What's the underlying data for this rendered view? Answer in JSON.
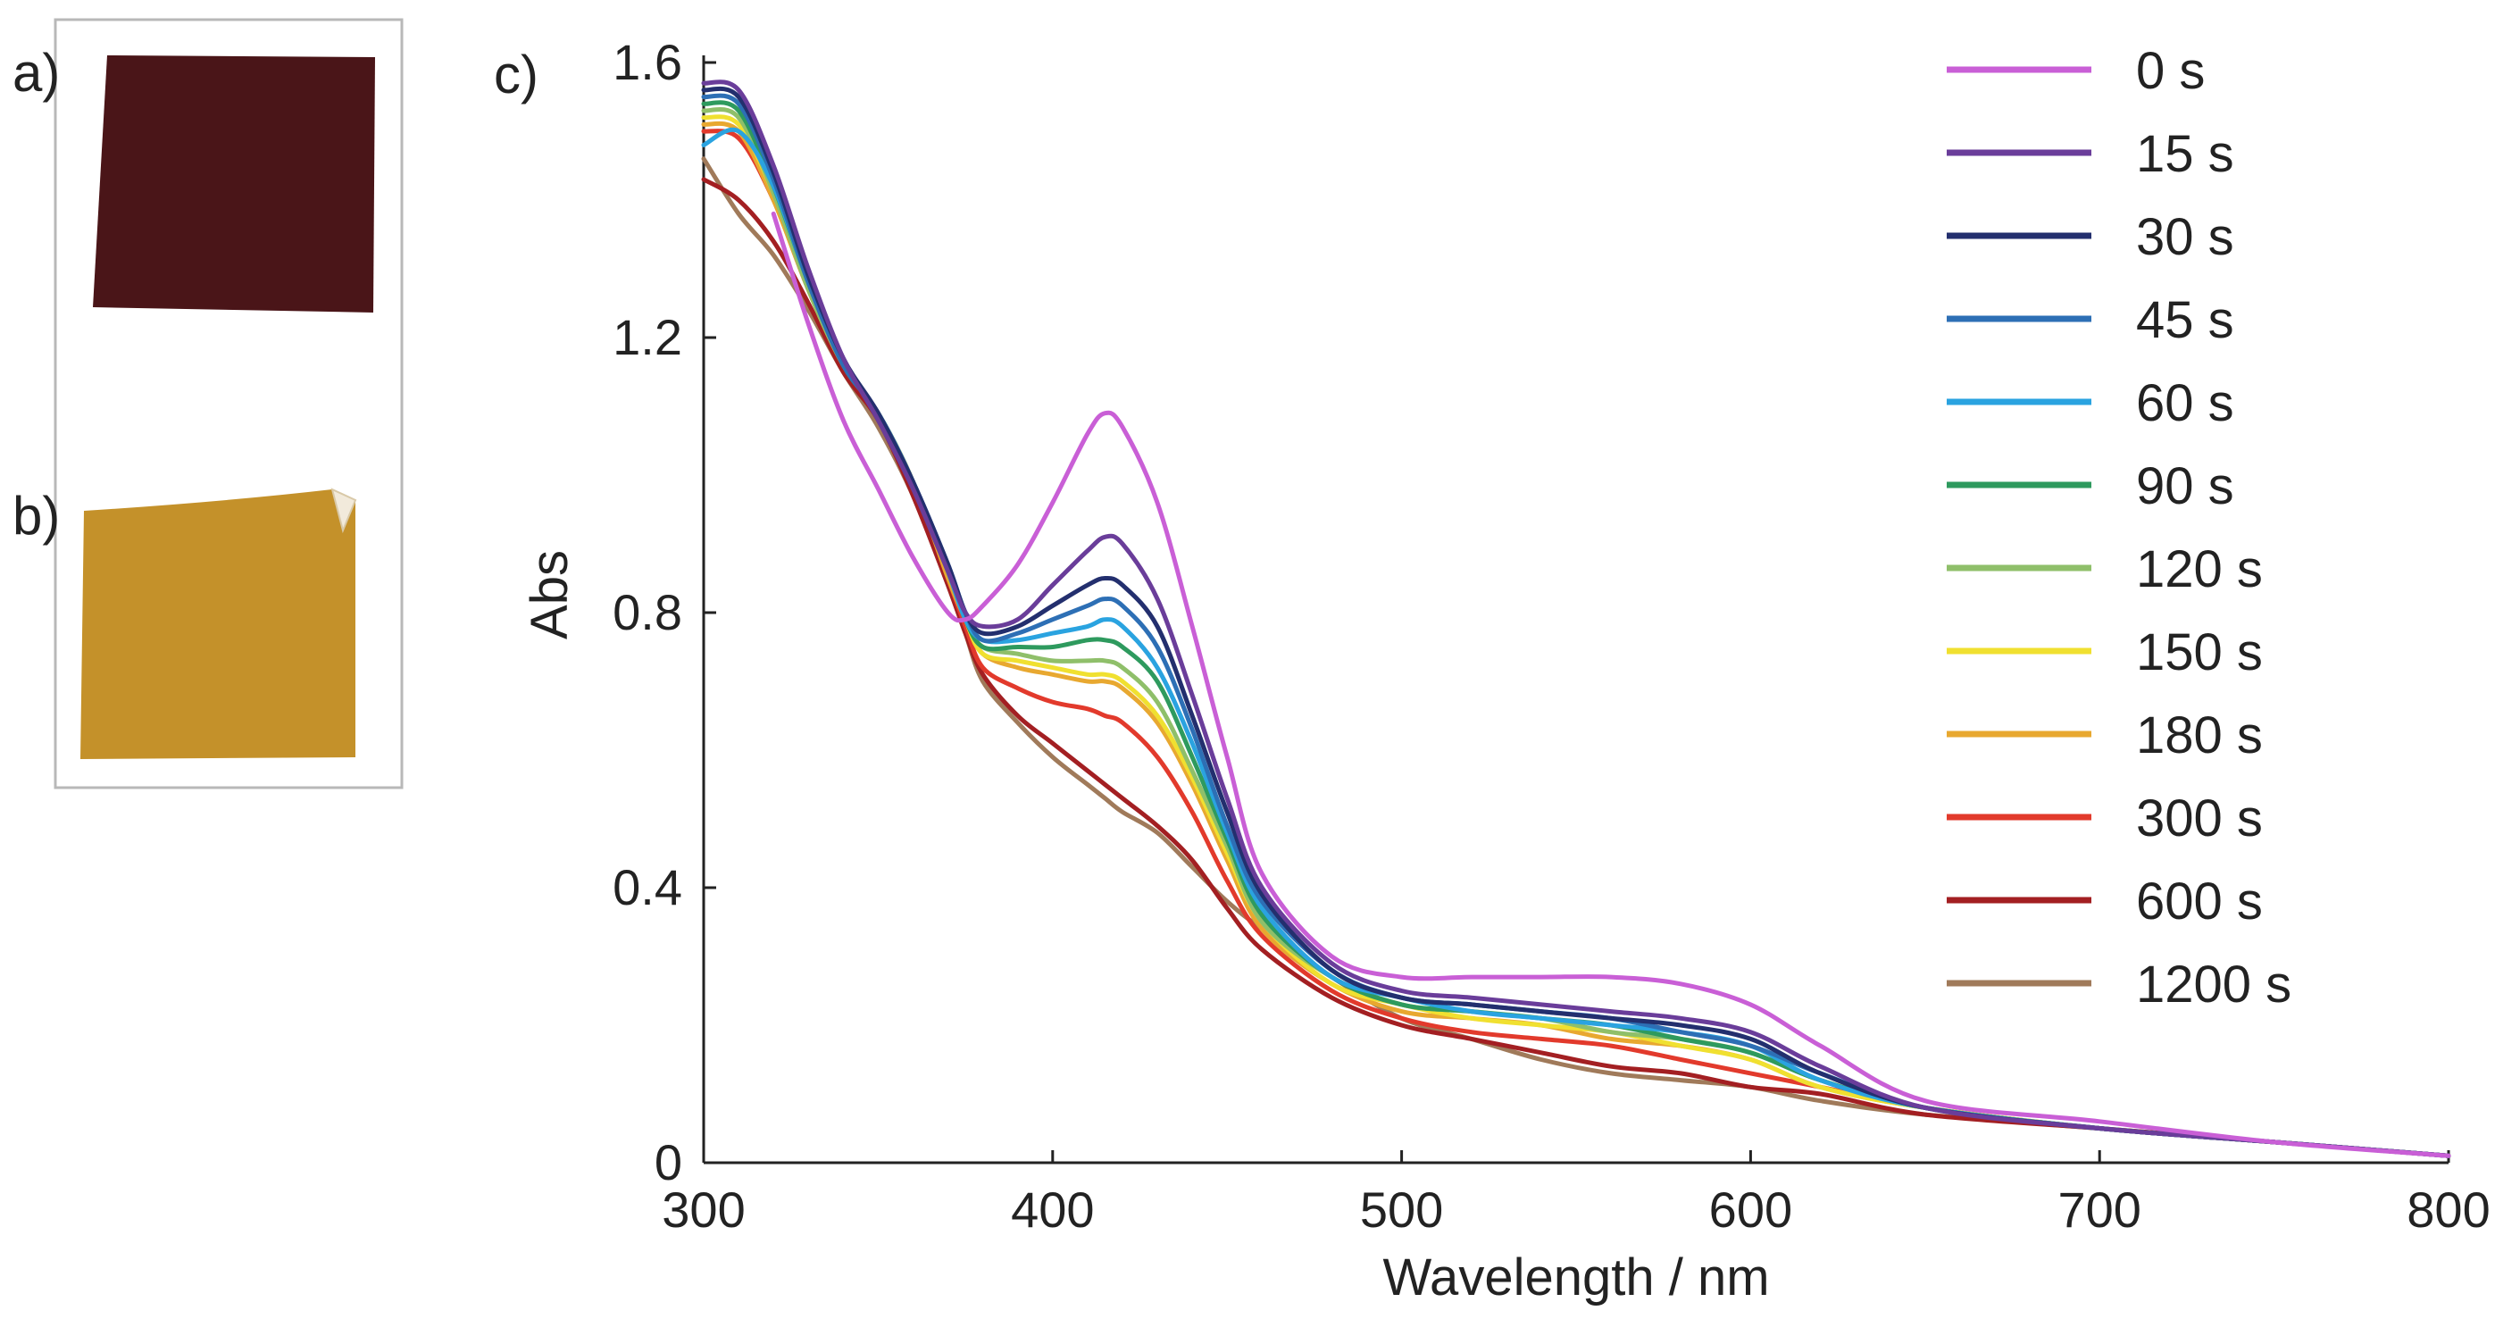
{
  "panels": {
    "a": {
      "label": "a)",
      "swatch_color": "#4a1518"
    },
    "b": {
      "label": "b)",
      "swatch_color": "#c4912a"
    },
    "c": {
      "label": "c)"
    }
  },
  "chart_data": {
    "type": "line",
    "title": "",
    "xlabel": "Wavelength / nm",
    "ylabel": "Abs",
    "xlim": [
      300,
      800
    ],
    "ylim": [
      0,
      1.6
    ],
    "xticks": [
      300,
      400,
      500,
      600,
      700,
      800
    ],
    "xtick_labels": [
      "300",
      "400",
      "500",
      "600",
      "700",
      "800"
    ],
    "yticks": [
      0,
      0.4,
      0.8,
      1.2,
      1.6
    ],
    "ytick_labels": [
      "0",
      "0.4",
      "0.8",
      "1.2",
      "1.6"
    ],
    "grid": false,
    "legend_position": "top-right",
    "x": [
      300,
      310,
      320,
      330,
      340,
      350,
      360,
      370,
      375,
      380,
      390,
      400,
      410,
      415,
      420,
      430,
      440,
      450,
      460,
      480,
      500,
      520,
      540,
      560,
      580,
      600,
      620,
      650,
      700,
      750,
      800
    ],
    "series": [
      {
        "name": "0 s",
        "color": "#c95fd6",
        "values": [
          null,
          null,
          1.38,
          1.22,
          1.08,
          0.98,
          0.88,
          0.8,
          0.79,
          0.81,
          0.87,
          0.96,
          1.06,
          1.09,
          1.07,
          0.96,
          0.78,
          0.59,
          0.42,
          0.3,
          0.27,
          0.27,
          0.27,
          0.27,
          0.26,
          0.23,
          0.17,
          0.09,
          0.06,
          0.03,
          0.01
        ]
      },
      {
        "name": "15 s",
        "color": "#6a3d9a",
        "values": [
          1.57,
          1.56,
          1.45,
          1.3,
          1.17,
          1.08,
          0.98,
          0.86,
          0.8,
          0.78,
          0.79,
          0.84,
          0.89,
          0.91,
          0.9,
          0.82,
          0.68,
          0.53,
          0.4,
          0.29,
          0.25,
          0.24,
          0.23,
          0.22,
          0.21,
          0.19,
          0.14,
          0.08,
          0.05,
          0.03,
          0.01
        ]
      },
      {
        "name": "30 s",
        "color": "#232f6e",
        "values": [
          1.56,
          1.55,
          1.44,
          1.29,
          1.17,
          1.09,
          0.99,
          0.87,
          0.8,
          0.77,
          0.78,
          0.81,
          0.84,
          0.85,
          0.84,
          0.78,
          0.65,
          0.51,
          0.39,
          0.28,
          0.24,
          0.23,
          0.22,
          0.21,
          0.2,
          0.18,
          0.13,
          0.08,
          0.05,
          0.03,
          0.01
        ]
      },
      {
        "name": "45 s",
        "color": "#2d6fb5",
        "values": [
          1.55,
          1.54,
          1.43,
          1.28,
          1.16,
          1.09,
          0.99,
          0.87,
          0.8,
          0.76,
          0.77,
          0.79,
          0.81,
          0.82,
          0.81,
          0.75,
          0.63,
          0.49,
          0.38,
          0.28,
          0.24,
          0.23,
          0.22,
          0.21,
          0.19,
          0.17,
          0.13,
          0.08,
          0.05,
          0.03,
          0.01
        ]
      },
      {
        "name": "60 s",
        "color": "#2aa3e0",
        "values": [
          1.48,
          1.5,
          1.42,
          1.28,
          1.16,
          1.09,
          0.99,
          0.86,
          0.79,
          0.76,
          0.76,
          0.77,
          0.78,
          0.79,
          0.78,
          0.72,
          0.61,
          0.48,
          0.37,
          0.27,
          0.24,
          0.22,
          0.21,
          0.2,
          0.19,
          0.17,
          0.12,
          0.08,
          0.05,
          0.03,
          0.01
        ]
      },
      {
        "name": "90 s",
        "color": "#2e9a5e",
        "values": [
          1.54,
          1.53,
          1.42,
          1.28,
          1.16,
          1.09,
          0.99,
          0.86,
          0.79,
          0.75,
          0.75,
          0.75,
          0.76,
          0.76,
          0.75,
          0.7,
          0.59,
          0.47,
          0.36,
          0.27,
          0.23,
          0.22,
          0.21,
          0.2,
          0.18,
          0.16,
          0.12,
          0.08,
          0.05,
          0.03,
          0.01
        ]
      },
      {
        "name": "120 s",
        "color": "#8fbf6a",
        "values": [
          1.53,
          1.52,
          1.41,
          1.27,
          1.16,
          1.09,
          0.99,
          0.86,
          0.79,
          0.75,
          0.74,
          0.73,
          0.73,
          0.73,
          0.72,
          0.67,
          0.57,
          0.46,
          0.35,
          0.27,
          0.23,
          0.22,
          0.21,
          0.19,
          0.18,
          0.16,
          0.12,
          0.08,
          0.05,
          0.03,
          0.01
        ]
      },
      {
        "name": "150 s",
        "color": "#f0e030",
        "values": [
          1.52,
          1.51,
          1.41,
          1.27,
          1.16,
          1.09,
          0.99,
          0.86,
          0.79,
          0.74,
          0.73,
          0.72,
          0.71,
          0.71,
          0.7,
          0.65,
          0.56,
          0.45,
          0.35,
          0.26,
          0.23,
          0.21,
          0.2,
          0.19,
          0.17,
          0.15,
          0.11,
          0.08,
          0.05,
          0.03,
          0.01
        ]
      },
      {
        "name": "180 s",
        "color": "#e8a830",
        "values": [
          1.51,
          1.5,
          1.4,
          1.27,
          1.16,
          1.09,
          0.99,
          0.85,
          0.79,
          0.74,
          0.72,
          0.71,
          0.7,
          0.7,
          0.69,
          0.64,
          0.55,
          0.44,
          0.34,
          0.26,
          0.22,
          0.21,
          0.2,
          0.18,
          0.17,
          0.15,
          0.11,
          0.08,
          0.05,
          0.03,
          0.01
        ]
      },
      {
        "name": "300 s",
        "color": "#e23a2c",
        "values": [
          1.5,
          1.49,
          1.4,
          1.27,
          1.16,
          1.09,
          0.99,
          0.85,
          0.78,
          0.72,
          0.69,
          0.67,
          0.66,
          0.65,
          0.64,
          0.59,
          0.51,
          0.41,
          0.33,
          0.25,
          0.21,
          0.19,
          0.18,
          0.17,
          0.15,
          0.13,
          0.11,
          0.08,
          0.05,
          0.03,
          0.01
        ]
      },
      {
        "name": "600 s",
        "color": "#a31f22",
        "values": [
          1.43,
          1.4,
          1.34,
          1.25,
          1.15,
          1.08,
          0.97,
          0.84,
          0.77,
          0.71,
          0.65,
          0.61,
          0.57,
          0.55,
          0.53,
          0.49,
          0.44,
          0.37,
          0.31,
          0.24,
          0.2,
          0.18,
          0.16,
          0.14,
          0.13,
          0.11,
          0.1,
          0.07,
          0.05,
          0.03,
          0.01
        ]
      },
      {
        "name": "1200 s",
        "color": "#a07a5a",
        "values": [
          1.46,
          1.38,
          1.32,
          1.24,
          1.15,
          1.07,
          0.97,
          0.84,
          0.77,
          0.7,
          0.64,
          0.59,
          0.55,
          0.53,
          0.51,
          0.48,
          0.43,
          0.38,
          0.34,
          0.27,
          0.21,
          0.18,
          0.15,
          0.13,
          0.12,
          0.11,
          0.09,
          0.07,
          0.05,
          0.03,
          0.01
        ]
      }
    ]
  }
}
